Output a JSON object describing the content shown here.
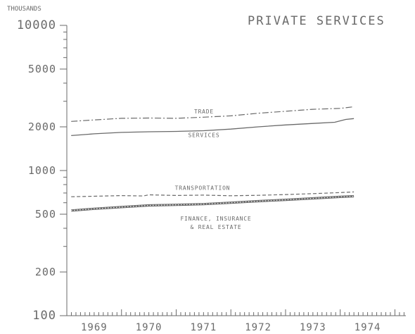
{
  "chart_data": {
    "type": "line",
    "title": "PRIVATE SERVICES",
    "unit_label": "THOUSANDS",
    "y_scale": "log",
    "ylim": [
      100,
      10000
    ],
    "y_ticks": [
      10000,
      5000,
      2000,
      1000,
      500,
      200,
      100
    ],
    "y_tick_labels": [
      "10000",
      "5000",
      "2000",
      "1000",
      "500",
      "200",
      "100"
    ],
    "xlim": [
      1968.5,
      1974.7
    ],
    "x_ticks": [
      1969,
      1970,
      1971,
      1972,
      1973,
      1974
    ],
    "x_tick_labels": [
      "1969",
      "1970",
      "1971",
      "1972",
      "1973",
      "1974"
    ],
    "grid": false,
    "series": [
      {
        "name": "TRADE",
        "style": "dash-dot",
        "x": [
          1968.58,
          1969.0,
          1969.5,
          1970.0,
          1970.5,
          1971.0,
          1971.5,
          1972.0,
          1972.5,
          1973.0,
          1973.5,
          1973.75
        ],
        "values": [
          2180,
          2230,
          2290,
          2300,
          2290,
          2330,
          2380,
          2480,
          2560,
          2640,
          2680,
          2750
        ]
      },
      {
        "name": "SERVICES",
        "style": "solid",
        "x": [
          1968.58,
          1969.0,
          1969.5,
          1970.0,
          1970.5,
          1971.0,
          1971.5,
          1972.0,
          1972.5,
          1973.0,
          1973.4,
          1973.6,
          1973.75
        ],
        "values": [
          1740,
          1790,
          1830,
          1850,
          1860,
          1880,
          1930,
          2000,
          2060,
          2110,
          2150,
          2250,
          2280
        ]
      },
      {
        "name": "TRANSPORTATION",
        "style": "dashed",
        "x": [
          1968.58,
          1969.0,
          1969.5,
          1969.9,
          1970.0,
          1970.5,
          1971.0,
          1971.5,
          1972.0,
          1972.5,
          1973.0,
          1973.5,
          1973.75
        ],
        "values": [
          660,
          665,
          672,
          668,
          680,
          673,
          677,
          670,
          675,
          683,
          693,
          705,
          712
        ]
      },
      {
        "name": "FINANCE, INSURANCE & REAL ESTATE",
        "label_lines": [
          "FINANCE, INSURANCE",
          "& REAL ESTATE"
        ],
        "style": "hatched",
        "x": [
          1968.58,
          1969.0,
          1969.5,
          1970.0,
          1970.5,
          1971.0,
          1971.5,
          1972.0,
          1972.5,
          1973.0,
          1973.5,
          1973.75
        ],
        "values": [
          530,
          545,
          560,
          575,
          580,
          587,
          600,
          615,
          628,
          643,
          658,
          665
        ]
      }
    ]
  },
  "colors": {
    "ink": "#6a6a6a",
    "background": "#ffffff"
  }
}
